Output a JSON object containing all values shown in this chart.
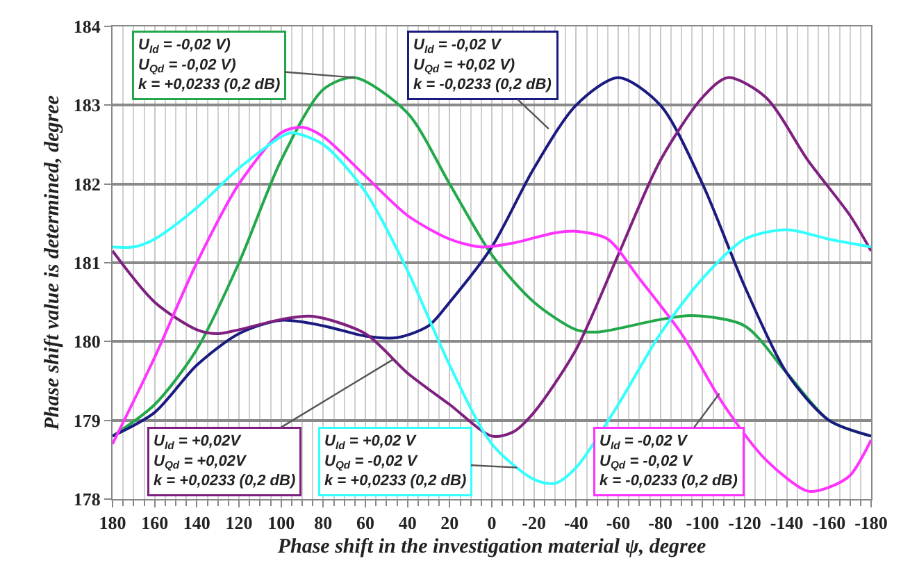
{
  "chart_data": {
    "type": "line",
    "xlabel": "Phase shift in the investigation material ψ, degree",
    "ylabel": "Phase shift value is determined, degree",
    "xlim": [
      180,
      -180
    ],
    "xticks": [
      180,
      160,
      140,
      120,
      100,
      80,
      60,
      40,
      20,
      0,
      -20,
      -40,
      -60,
      -80,
      -100,
      -120,
      -140,
      -160,
      -180
    ],
    "ylim": [
      178,
      184
    ],
    "yticks": [
      178,
      179,
      180,
      181,
      182,
      183,
      184
    ],
    "grid": true,
    "marker": "none",
    "line_style": "solid",
    "series": [
      {
        "color": "#22a84a",
        "x": [
          180,
          160,
          140,
          120,
          100,
          80,
          65,
          40,
          20,
          0,
          -20,
          -40,
          -50,
          -80,
          -95,
          -120,
          -140,
          -160,
          -180
        ],
        "values": [
          178.8,
          179.2,
          179.9,
          181.0,
          182.3,
          183.2,
          183.35,
          182.9,
          182.0,
          181.1,
          180.5,
          180.15,
          180.12,
          180.28,
          180.33,
          180.2,
          179.6,
          179.0,
          178.8
        ]
      },
      {
        "color": "#1a1a80",
        "x": [
          180,
          160,
          140,
          120,
          100,
          80,
          60,
          45,
          30,
          20,
          0,
          -20,
          -40,
          -60,
          -80,
          -100,
          -120,
          -140,
          -160,
          -180
        ],
        "values": [
          178.8,
          179.1,
          179.7,
          180.1,
          180.27,
          180.2,
          180.07,
          180.05,
          180.2,
          180.5,
          181.2,
          182.2,
          183.0,
          183.35,
          183.0,
          182.0,
          180.7,
          179.6,
          179.0,
          178.8
        ]
      },
      {
        "color": "#7f1f7f",
        "x": [
          180,
          160,
          140,
          130,
          120,
          100,
          85,
          60,
          40,
          20,
          0,
          -10,
          -20,
          -40,
          -60,
          -80,
          -100,
          -112,
          -130,
          -150,
          -170,
          -180
        ],
        "values": [
          181.15,
          180.5,
          180.15,
          180.1,
          180.15,
          180.28,
          180.32,
          180.1,
          179.6,
          179.2,
          178.8,
          178.85,
          179.1,
          179.9,
          181.1,
          182.3,
          183.1,
          183.35,
          183.1,
          182.3,
          181.6,
          181.15
        ]
      },
      {
        "color": "#ff33ff",
        "x": [
          180,
          160,
          140,
          120,
          100,
          90,
          80,
          60,
          40,
          20,
          5,
          -10,
          -30,
          -40,
          -55,
          -70,
          -90,
          -110,
          -130,
          -150,
          -160,
          -170,
          -180
        ],
        "values": [
          178.7,
          179.8,
          181.0,
          182.0,
          182.65,
          182.72,
          182.6,
          182.1,
          181.6,
          181.3,
          181.2,
          181.25,
          181.38,
          181.4,
          181.3,
          180.8,
          180.1,
          179.2,
          178.5,
          178.1,
          178.15,
          178.3,
          178.75
        ]
      },
      {
        "color": "#33ffff",
        "x": [
          180,
          170,
          160,
          140,
          120,
          100,
          95,
          80,
          60,
          40,
          20,
          0,
          -20,
          -30,
          -40,
          -60,
          -80,
          -100,
          -120,
          -140,
          -160,
          -180
        ],
        "values": [
          181.2,
          181.2,
          181.3,
          181.7,
          182.2,
          182.6,
          182.65,
          182.5,
          181.9,
          180.9,
          179.7,
          178.7,
          178.25,
          178.2,
          178.4,
          179.2,
          180.1,
          180.8,
          181.3,
          181.42,
          181.3,
          181.2
        ]
      }
    ],
    "annotations": [
      {
        "text": "U$_{Id}$ = -0,02 V)\nU$_{Qd}$ = -0,02 V)\nk = +0,0233 (0,2 dB)",
        "x": 65,
        "y": 183.35
      },
      {
        "text": "U$_{Id}$ = -0,02 V\nU$_{Qd}$ = +0,02 V)\nk = -0,0233 (0,2 dB)",
        "x": -27,
        "y": 182.7
      },
      {
        "text": "U$_{Id}$ = +0,02V\nU$_{Qd}$ = +0,02V\nk = +0,0233 (0,2 dB)",
        "x": 47,
        "y": 179.77
      },
      {
        "text": "U$_{Id}$ = +0,02 V\nU$_{Qd}$ = -0,02 V\nk = +0,0233 (0,2 dB)",
        "x": -12,
        "y": 178.4
      },
      {
        "text": "U$_{Id}$ = -0,02 V\nU$_{Qd}$ = -0,02 V\nk = -0,0233 (0,2 dB)",
        "x": -108,
        "y": 179.34
      }
    ]
  }
}
